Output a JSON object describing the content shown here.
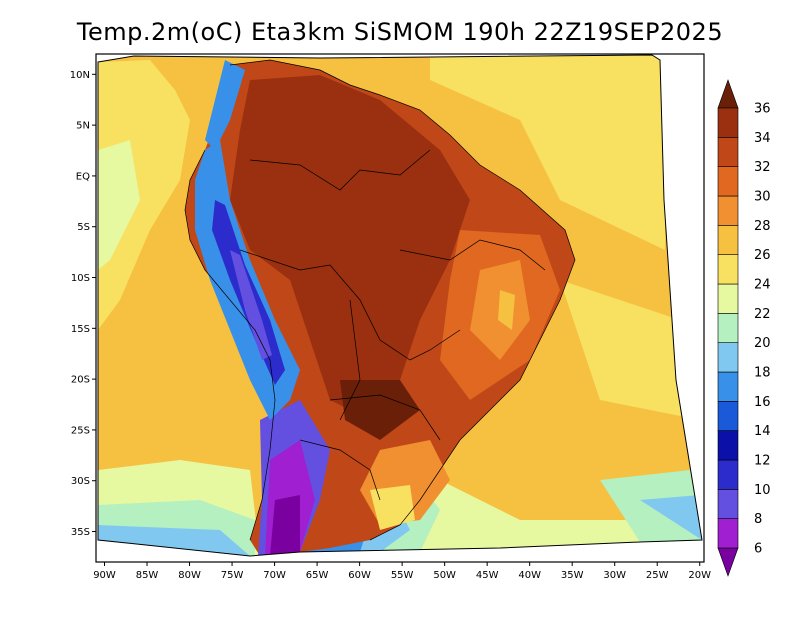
{
  "chart_data": {
    "type": "heatmap",
    "title": "Temp.2m(oC) Eta3km SiSMOM 190h 22Z19SEP2025",
    "variable": "Temp.2m",
    "units": "oC",
    "model": "Eta3km SiSMOM",
    "forecast_hour": "190h",
    "valid_time": "22Z19SEP2025",
    "x_ticks": [
      "90W",
      "85W",
      "80W",
      "75W",
      "70W",
      "65W",
      "60W",
      "55W",
      "50W",
      "45W",
      "40W",
      "35W",
      "30W",
      "25W",
      "20W"
    ],
    "x_values": [
      -90,
      -85,
      -80,
      -75,
      -70,
      -65,
      -60,
      -55,
      -50,
      -45,
      -40,
      -35,
      -30,
      -25,
      -20
    ],
    "y_ticks": [
      "10N",
      "5N",
      "EQ",
      "5S",
      "10S",
      "15S",
      "20S",
      "25S",
      "30S",
      "35S"
    ],
    "y_values": [
      10,
      5,
      0,
      -5,
      -10,
      -15,
      -20,
      -25,
      -30,
      -35
    ],
    "xlim": [
      -91,
      -19.5
    ],
    "ylim": [
      -38,
      12
    ],
    "colorbar": {
      "levels": [
        6,
        8,
        10,
        12,
        14,
        16,
        18,
        20,
        22,
        24,
        26,
        28,
        30,
        32,
        34,
        36
      ],
      "labels": [
        "6",
        "8",
        "10",
        "12",
        "14",
        "16",
        "18",
        "20",
        "22",
        "24",
        "26",
        "28",
        "30",
        "32",
        "34",
        "36"
      ],
      "colors": [
        "#7a00a0",
        "#a01fd0",
        "#6450e0",
        "#2c2ccc",
        "#0a10a8",
        "#1a5ad8",
        "#3890e8",
        "#80c8f0",
        "#b4f0c0",
        "#e6f8a0",
        "#f8e060",
        "#f6c040",
        "#f09030",
        "#e06820",
        "#c04818",
        "#9a3010",
        "#6a2008"
      ]
    }
  }
}
